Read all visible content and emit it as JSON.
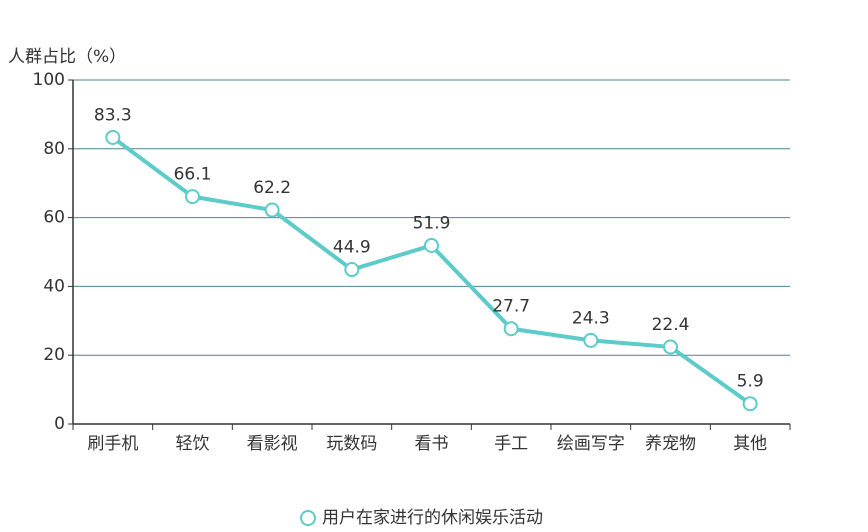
{
  "chart_data": {
    "type": "line",
    "y_label": "人群占比（%）",
    "categories": [
      "刷手机",
      "轻饮",
      "看影视",
      "玩数码",
      "看书",
      "手工",
      "绘画写字",
      "养宠物",
      "其他"
    ],
    "series": [
      {
        "name": "用户在家进行的休闲娱乐活动",
        "color": "#5ccbc9",
        "values": [
          83.3,
          66.1,
          62.2,
          44.9,
          51.9,
          27.7,
          24.3,
          22.4,
          5.9
        ]
      }
    ],
    "ylim": [
      0,
      100
    ],
    "yticks": [
      0,
      20,
      40,
      60,
      80,
      100
    ],
    "grid": true,
    "legend": "bottom"
  }
}
